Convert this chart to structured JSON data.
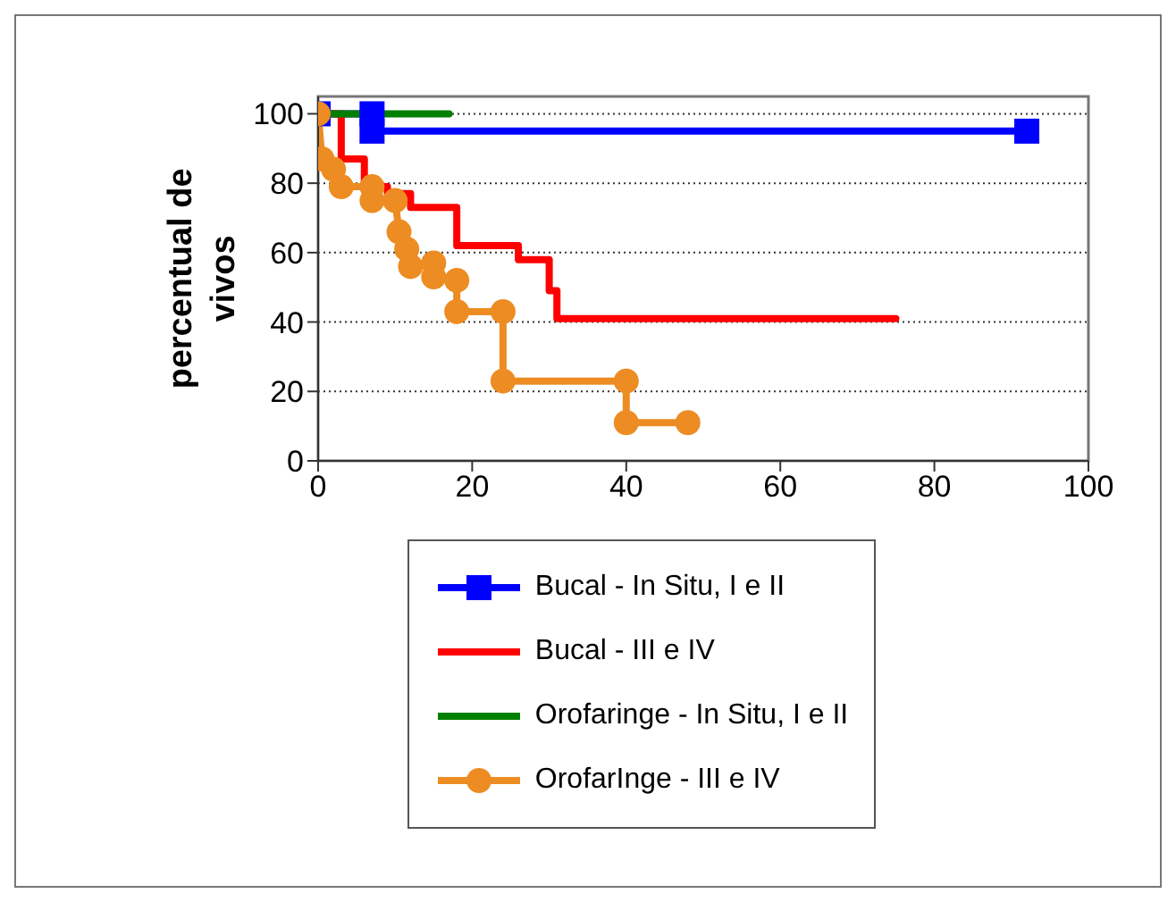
{
  "chart_data": {
    "type": "line",
    "ylabel": "percentual de vivos",
    "series": [
      {
        "name": "Bucal - In Situ, I e II",
        "color": "#0000ff",
        "marker": "square",
        "x": [
          0,
          7,
          7,
          92
        ],
        "values": [
          100,
          100,
          95,
          95
        ]
      },
      {
        "name": "Bucal - III e IV",
        "color": "#ff0000",
        "marker": "none",
        "x": [
          0,
          3,
          3,
          6,
          6,
          9,
          9,
          12,
          12,
          18,
          18,
          26,
          26,
          30,
          30,
          31,
          31,
          75
        ],
        "values": [
          100,
          100,
          87,
          87,
          79,
          79,
          77,
          77,
          73,
          73,
          62,
          62,
          58,
          58,
          49,
          49,
          41,
          41
        ]
      },
      {
        "name": "Orofaringe - In Situ, I e II",
        "color": "#008000",
        "marker": "none",
        "x": [
          0,
          17
        ],
        "values": [
          100,
          100
        ]
      },
      {
        "name": "OrofarInge - III e IV",
        "color": "#ec8c22",
        "marker": "circle",
        "x": [
          0,
          0.5,
          2,
          3,
          7,
          7,
          10,
          10.5,
          11.5,
          12,
          15,
          15,
          18,
          18,
          24,
          24,
          40,
          40,
          48
        ],
        "values": [
          100,
          87,
          84,
          79,
          79,
          75,
          75,
          66,
          61,
          56,
          57,
          53,
          52,
          43,
          43,
          23,
          23,
          11,
          11
        ]
      }
    ],
    "xlim": [
      0,
      100
    ],
    "xticks": [
      0,
      20,
      40,
      60,
      80,
      100
    ],
    "ylim": [
      0,
      105
    ],
    "yticks": [
      0,
      20,
      40,
      60,
      80,
      100
    ],
    "grid": "y",
    "legend": "bottom",
    "line_style": "solid"
  }
}
